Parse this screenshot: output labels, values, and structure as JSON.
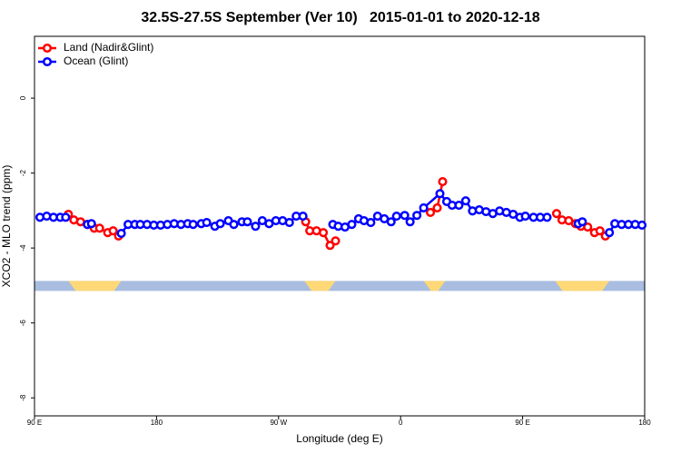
{
  "chart_data": {
    "type": "line",
    "title": "32.5S-27.5S September (Ver 10)   2015-01-01 to 2020-12-18",
    "xlabel": "Longitude (deg E)",
    "ylabel": "XCO2 - MLO trend (ppm)",
    "xlim": [
      90,
      540
    ],
    "ylim": [
      -8.48,
      1.65
    ],
    "xticks": [
      {
        "value": 90,
        "label": "90 E"
      },
      180,
      {
        "value": 270,
        "label": "90 W"
      },
      {
        "value": 360,
        "label": "0"
      },
      {
        "value": 450,
        "label": "90 E"
      },
      {
        "value": 540,
        "label": "180"
      }
    ],
    "yticks": [
      0,
      -2,
      -4,
      -6,
      -8
    ],
    "legend": "top-left",
    "strip": {
      "y": -5,
      "land": [
        [
          115,
          154
        ],
        [
          289,
          312
        ],
        [
          377,
          393
        ],
        [
          474,
          514
        ]
      ]
    },
    "series": [
      {
        "name": "Land (Nadir&Glint)",
        "color": "#ff0000",
        "x": [
          115,
          119,
          124,
          129,
          134,
          138,
          144,
          148,
          152,
          null,
          290,
          293,
          298,
          303,
          308,
          312,
          null,
          382,
          387,
          391,
          null,
          475,
          479,
          484,
          489,
          493,
          498,
          503,
          507,
          511
        ],
        "values": [
          -3.1,
          -3.25,
          -3.3,
          -3.37,
          -3.47,
          -3.47,
          -3.59,
          -3.54,
          -3.68,
          null,
          -3.3,
          -3.54,
          -3.54,
          -3.59,
          -3.93,
          -3.81,
          null,
          -3.05,
          -2.93,
          -2.23,
          null,
          -3.08,
          -3.25,
          -3.27,
          -3.35,
          -3.42,
          -3.44,
          -3.59,
          -3.54,
          -3.68
        ]
      },
      {
        "name": "Ocean (Glint)",
        "color": "#0000ff",
        "x": [
          94,
          99,
          104,
          109,
          113,
          null,
          129,
          132,
          null,
          154,
          159,
          164,
          168,
          173,
          178,
          183,
          188,
          193,
          198,
          203,
          207,
          213,
          217,
          223,
          227,
          233,
          237,
          243,
          247,
          253,
          258,
          263,
          268,
          273,
          278,
          283,
          288,
          null,
          310,
          314,
          319,
          324,
          329,
          333,
          338,
          343,
          348,
          353,
          357,
          363,
          367,
          372,
          377,
          389,
          394,
          398,
          403,
          408,
          413,
          418,
          423,
          428,
          433,
          438,
          443,
          448,
          452,
          458,
          463,
          468,
          null,
          491,
          494,
          null,
          514,
          518,
          523,
          528,
          533,
          538
        ],
        "values": [
          -3.18,
          -3.15,
          -3.18,
          -3.18,
          -3.18,
          null,
          -3.37,
          -3.35,
          null,
          -3.61,
          -3.37,
          -3.37,
          -3.37,
          -3.37,
          -3.39,
          -3.39,
          -3.37,
          -3.35,
          -3.37,
          -3.35,
          -3.37,
          -3.35,
          -3.32,
          -3.42,
          -3.35,
          -3.27,
          -3.37,
          -3.3,
          -3.3,
          -3.42,
          -3.27,
          -3.35,
          -3.27,
          -3.27,
          -3.32,
          -3.15,
          -3.15,
          null,
          -3.37,
          -3.42,
          -3.44,
          -3.37,
          -3.22,
          -3.27,
          -3.32,
          -3.15,
          -3.22,
          -3.3,
          -3.15,
          -3.13,
          -3.3,
          -3.13,
          -2.93,
          -2.55,
          -2.76,
          -2.86,
          -2.86,
          -2.74,
          -3.01,
          -2.98,
          -3.03,
          -3.08,
          -3.01,
          -3.05,
          -3.1,
          -3.18,
          -3.15,
          -3.18,
          -3.18,
          -3.18,
          null,
          -3.35,
          -3.3,
          null,
          -3.59,
          -3.35,
          -3.37,
          -3.37,
          -3.37,
          -3.39
        ]
      }
    ]
  }
}
